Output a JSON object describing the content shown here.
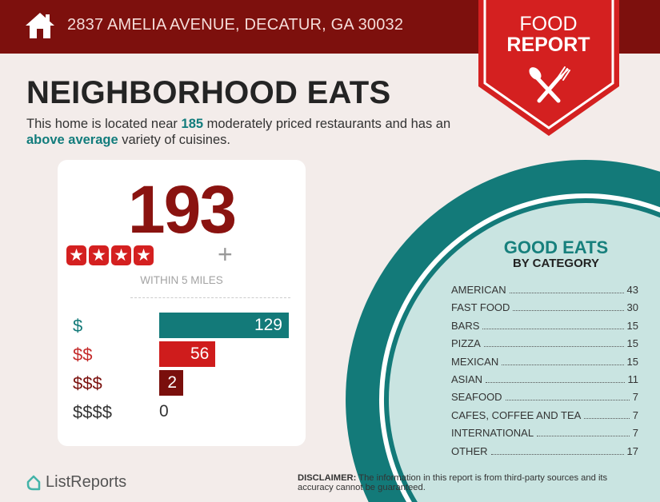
{
  "header": {
    "address": "2837 AMELIA AVENUE, DECATUR, GA 30032",
    "icon": "home-icon"
  },
  "badge": {
    "line1": "FOOD",
    "line2": "REPORT",
    "icon": "spoon-fork-icon"
  },
  "title": "NEIGHBORHOOD EATS",
  "intro": {
    "pre": "This home is located near ",
    "count": "185",
    "mid": " moderately priced restaurants and has an ",
    "variety": "above average",
    "post": " variety of cuisines."
  },
  "summary": {
    "total": "193",
    "stars": 4,
    "plus": "+",
    "radius_label": "WITHIN 5 MILES"
  },
  "price_tiers": [
    {
      "label": "$",
      "value": 129,
      "color": "#137a79",
      "label_color": "#137a79"
    },
    {
      "label": "$$",
      "value": 56,
      "color": "#cf1c1c",
      "label_color": "#c42a2a"
    },
    {
      "label": "$$$",
      "value": 2,
      "color": "#7a0f0c",
      "label_color": "#7a0f0c"
    },
    {
      "label": "$$$$",
      "value": 0,
      "color": "#333333",
      "label_color": "#333333"
    }
  ],
  "good_eats": {
    "title": "GOOD EATS",
    "subtitle": "BY CATEGORY",
    "categories": [
      {
        "name": "AMERICAN",
        "count": "43"
      },
      {
        "name": "FAST FOOD",
        "count": "30"
      },
      {
        "name": "BARS",
        "count": "15"
      },
      {
        "name": "PIZZA",
        "count": "15"
      },
      {
        "name": "MEXICAN",
        "count": "15"
      },
      {
        "name": "ASIAN",
        "count": "11"
      },
      {
        "name": "SEAFOOD",
        "count": "7"
      },
      {
        "name": "CAFES, COFFEE AND TEA",
        "count": "7"
      },
      {
        "name": "INTERNATIONAL",
        "count": "7"
      },
      {
        "name": "OTHER",
        "count": "17"
      }
    ]
  },
  "footer": {
    "brand": "ListReports",
    "disclaimer_label": "DISCLAIMER:",
    "disclaimer_text": " The information in this report is from third-party sources and its accuracy cannot be guaranteed."
  },
  "colors": {
    "header": "#7d100d",
    "accent_red": "#d42020",
    "teal": "#137a79",
    "circle_fill": "#c9e4e1"
  }
}
